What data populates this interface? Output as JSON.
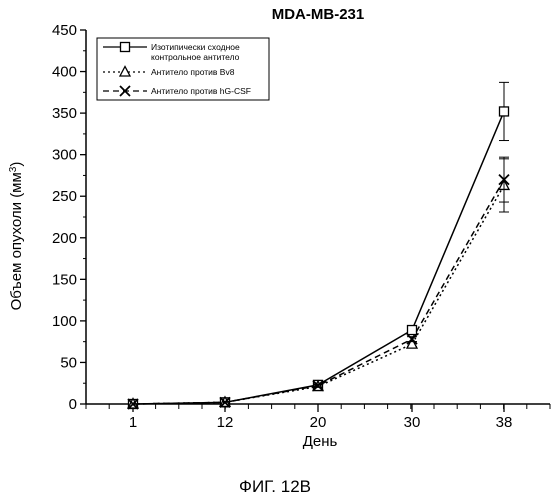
{
  "chart_data": {
    "type": "line",
    "title": "MDA-MB-231",
    "xlabel": "День",
    "ylabel_prefix": "Объем опухоли (мм",
    "ylabel_sup": "3",
    "ylabel_suffix": ")",
    "categories": [
      "1",
      "12",
      "20",
      "30",
      "38"
    ],
    "ylim": [
      0,
      450
    ],
    "yticks": [
      0,
      50,
      100,
      150,
      200,
      250,
      300,
      350,
      400,
      450
    ],
    "grid": false,
    "legend_position": "top-left",
    "series": [
      {
        "name_line1": "Изотипически сходное",
        "name_line2": "контрольное антитело",
        "marker": "square",
        "line": "solid",
        "values": [
          0,
          2,
          23,
          89,
          352
        ],
        "errors": [
          0,
          0,
          2,
          4,
          35
        ]
      },
      {
        "name_line1": "Антитело против Bv8",
        "marker": "triangle",
        "line": "dotted",
        "values": [
          0,
          2,
          21,
          72,
          263
        ],
        "errors": [
          0,
          0,
          2,
          3,
          32
        ]
      },
      {
        "name_line1": "Антитело против hG-CSF",
        "marker": "x",
        "line": "dashed",
        "values": [
          0,
          2,
          22,
          78,
          270
        ],
        "errors": [
          0,
          0,
          2,
          3,
          27
        ]
      }
    ]
  },
  "figure_label": "ФИГ. 12В"
}
